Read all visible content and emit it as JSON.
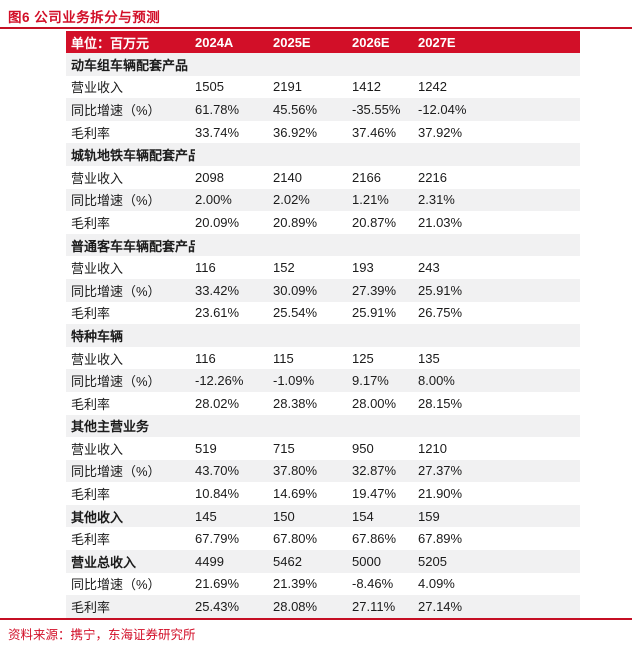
{
  "title": "图6  公司业务拆分与预测",
  "source": "资料来源：携宁，东海证券研究所",
  "colors": {
    "accent_red": "#d20f28",
    "rule_red": "#c50f24",
    "stripe_gray": "#f1f1f2",
    "header_text": "#ffffff",
    "body_text": "#1b1b1b"
  },
  "table": {
    "header": {
      "unit_label": "单位：百万元",
      "columns": [
        "2024A",
        "2025E",
        "2026E",
        "2027E"
      ]
    },
    "rows": [
      {
        "label": "动车组车辆配套产品",
        "bold": true,
        "values": [
          "",
          "",
          "",
          ""
        ]
      },
      {
        "label": "营业收入",
        "bold": false,
        "values": [
          "1505",
          "2191",
          "1412",
          "1242"
        ]
      },
      {
        "label": "同比增速（%）",
        "bold": false,
        "values": [
          "61.78%",
          "45.56%",
          "-35.55%",
          "-12.04%"
        ]
      },
      {
        "label": "毛利率",
        "bold": false,
        "values": [
          "33.74%",
          "36.92%",
          "37.46%",
          "37.92%"
        ]
      },
      {
        "label": "城轨地铁车辆配套产品",
        "bold": true,
        "values": [
          "",
          "",
          "",
          ""
        ]
      },
      {
        "label": "营业收入",
        "bold": false,
        "values": [
          "2098",
          "2140",
          "2166",
          "2216"
        ]
      },
      {
        "label": "同比增速（%）",
        "bold": false,
        "values": [
          "2.00%",
          "2.02%",
          "1.21%",
          "2.31%"
        ]
      },
      {
        "label": "毛利率",
        "bold": false,
        "values": [
          "20.09%",
          "20.89%",
          "20.87%",
          "21.03%"
        ]
      },
      {
        "label": "普通客车车辆配套产品",
        "bold": true,
        "values": [
          "",
          "",
          "",
          ""
        ]
      },
      {
        "label": "营业收入",
        "bold": false,
        "values": [
          "116",
          "152",
          "193",
          "243"
        ]
      },
      {
        "label": "同比增速（%）",
        "bold": false,
        "values": [
          "33.42%",
          "30.09%",
          "27.39%",
          "25.91%"
        ]
      },
      {
        "label": "毛利率",
        "bold": false,
        "values": [
          "23.61%",
          "25.54%",
          "25.91%",
          "26.75%"
        ]
      },
      {
        "label": "特种车辆",
        "bold": true,
        "values": [
          "",
          "",
          "",
          ""
        ]
      },
      {
        "label": "营业收入",
        "bold": false,
        "values": [
          "116",
          "115",
          "125",
          "135"
        ]
      },
      {
        "label": "同比增速（%）",
        "bold": false,
        "values": [
          "-12.26%",
          "-1.09%",
          "9.17%",
          "8.00%"
        ]
      },
      {
        "label": "毛利率",
        "bold": false,
        "values": [
          "28.02%",
          "28.38%",
          "28.00%",
          "28.15%"
        ]
      },
      {
        "label": "其他主营业务",
        "bold": true,
        "values": [
          "",
          "",
          "",
          ""
        ]
      },
      {
        "label": "营业收入",
        "bold": false,
        "values": [
          "519",
          "715",
          "950",
          "1210"
        ]
      },
      {
        "label": "同比增速（%）",
        "bold": false,
        "values": [
          "43.70%",
          "37.80%",
          "32.87%",
          "27.37%"
        ]
      },
      {
        "label": "毛利率",
        "bold": false,
        "values": [
          "10.84%",
          "14.69%",
          "19.47%",
          "21.90%"
        ]
      },
      {
        "label": "其他收入",
        "bold": true,
        "values": [
          "145",
          "150",
          "154",
          "159"
        ]
      },
      {
        "label": "毛利率",
        "bold": false,
        "values": [
          "67.79%",
          "67.80%",
          "67.86%",
          "67.89%"
        ]
      },
      {
        "label": "营业总收入",
        "bold": true,
        "values": [
          "4499",
          "5462",
          "5000",
          "5205"
        ]
      },
      {
        "label": "同比增速（%）",
        "bold": false,
        "values": [
          "21.69%",
          "21.39%",
          "-8.46%",
          "4.09%"
        ]
      },
      {
        "label": "毛利率",
        "bold": false,
        "values": [
          "25.43%",
          "28.08%",
          "27.11%",
          "27.14%"
        ]
      }
    ]
  }
}
